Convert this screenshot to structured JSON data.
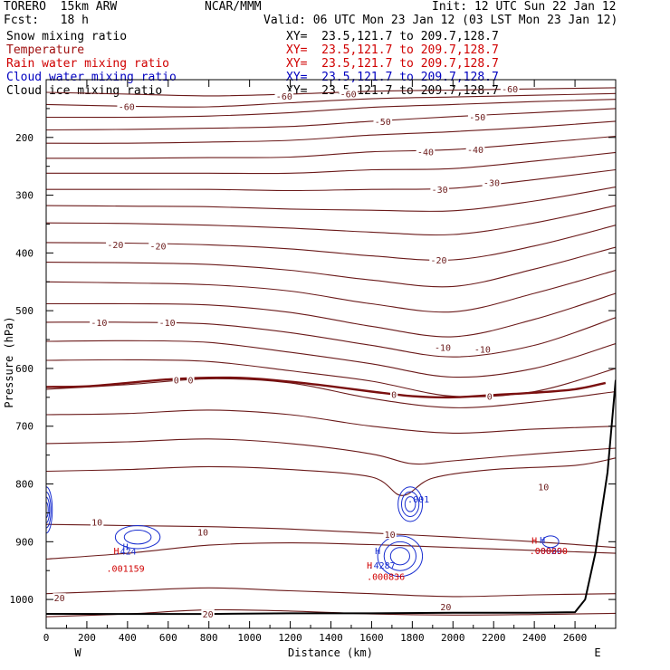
{
  "header": {
    "model": "TORERO  15km ARW",
    "center": "NCAR/MMM",
    "init": "Init: 12 UTC Sun 22 Jan 12",
    "fcst": "Fcst:   18 h",
    "valid": "Valid: 06 UTC Mon 23 Jan 12 (03 LST Mon 23 Jan 12)"
  },
  "fields": [
    {
      "name": "Snow mixing ratio",
      "xy": "XY=  23.5,121.7 to 209.7,128.7",
      "color": "#000000"
    },
    {
      "name": "Temperature",
      "xy": "XY=  23.5,121.7 to 209.7,128.7",
      "color": "#a01010"
    },
    {
      "name": "Rain water mixing ratio",
      "xy": "XY=  23.5,121.7 to 209.7,128.7",
      "color": "#d00000"
    },
    {
      "name": "Cloud water mixing ratio",
      "xy": "XY=  23.5,121.7 to 209.7,128.7",
      "color": "#0000c0"
    },
    {
      "name": "Cloud ice mixing ratio",
      "xy": "XY=  23.5,121.7 to 209.7,128.7",
      "color": "#000000"
    }
  ],
  "chart_data": {
    "type": "line",
    "xlabel": "Distance (km)",
    "ylabel": "Pressure (hPa)",
    "xlim": [
      0,
      2800
    ],
    "ylim": [
      1050,
      100
    ],
    "xticks": [
      0,
      200,
      400,
      600,
      800,
      1000,
      1200,
      1400,
      1600,
      1800,
      2000,
      2200,
      2400,
      2600
    ],
    "yticks": [
      200,
      300,
      400,
      500,
      600,
      700,
      800,
      900,
      1000
    ],
    "x_end_labels": {
      "left": "W",
      "right": "E"
    },
    "isotherm_color": "#6b1a1a",
    "terrain_color": "#000000",
    "isotherms": [
      {
        "value": -60,
        "x": [
          0,
          400,
          800,
          1200,
          1600,
          2000,
          2400,
          2800
        ],
        "y": [
          122,
          125,
          128,
          125,
          120,
          118,
          116,
          114
        ]
      },
      {
        "value": -60,
        "x": [
          0,
          400,
          800,
          1200,
          1600,
          2000,
          2400,
          2800
        ],
        "y": [
          143,
          146,
          147,
          140,
          133,
          130,
          127,
          124
        ]
      },
      {
        "value": -60,
        "x": [
          0,
          400,
          800,
          1200,
          1600,
          2000,
          2400,
          2800
        ],
        "y": [
          165,
          165,
          163,
          157,
          148,
          143,
          138,
          134
        ]
      },
      {
        "value": -50,
        "x": [
          0,
          400,
          800,
          1200,
          1600,
          2000,
          2400,
          2800
        ],
        "y": [
          187,
          186,
          184,
          181,
          172,
          164,
          157,
          150
        ]
      },
      {
        "value": -50,
        "x": [
          0,
          400,
          800,
          1200,
          1600,
          2000,
          2400,
          2800
        ],
        "y": [
          210,
          210,
          208,
          205,
          196,
          190,
          182,
          172
        ]
      },
      {
        "value": -40,
        "x": [
          0,
          400,
          800,
          1200,
          1600,
          2000,
          2400,
          2800
        ],
        "y": [
          236,
          236,
          235,
          234,
          225,
          221,
          210,
          198
        ]
      },
      {
        "value": -40,
        "x": [
          0,
          400,
          800,
          1200,
          1600,
          2000,
          2400,
          2800
        ],
        "y": [
          262,
          262,
          262,
          262,
          256,
          254,
          241,
          226
        ]
      },
      {
        "value": -30,
        "x": [
          0,
          400,
          800,
          1200,
          1600,
          2000,
          2400,
          2800
        ],
        "y": [
          290,
          290,
          290,
          292,
          290,
          288,
          273,
          256
        ]
      },
      {
        "value": -30,
        "x": [
          0,
          400,
          800,
          1200,
          1600,
          2000,
          2400,
          2800
        ],
        "y": [
          318,
          319,
          320,
          324,
          326,
          327,
          310,
          286
        ]
      },
      {
        "value": -20,
        "x": [
          0,
          400,
          800,
          1200,
          1600,
          2000,
          2400,
          2800
        ],
        "y": [
          348,
          349,
          352,
          357,
          364,
          368,
          348,
          318
        ]
      },
      {
        "value": -20,
        "x": [
          0,
          400,
          800,
          1200,
          1600,
          2000,
          2400,
          2800
        ],
        "y": [
          382,
          383,
          386,
          393,
          405,
          412,
          388,
          352
        ]
      },
      {
        "value": -20,
        "x": [
          0,
          400,
          800,
          1200,
          1600,
          2000,
          2400,
          2800
        ],
        "y": [
          416,
          417,
          420,
          430,
          447,
          458,
          428,
          390
        ]
      },
      {
        "value": -20,
        "x": [
          0,
          400,
          800,
          1200,
          1600,
          2000,
          2400,
          2800
        ],
        "y": [
          450,
          452,
          455,
          466,
          488,
          502,
          470,
          430
        ]
      },
      {
        "value": -10,
        "x": [
          0,
          400,
          800,
          1200,
          1600,
          2000,
          2400,
          2800
        ],
        "y": [
          488,
          488,
          490,
          503,
          527,
          545,
          515,
          470
        ]
      },
      {
        "value": -10,
        "x": [
          0,
          400,
          800,
          1200,
          1600,
          2000,
          2400,
          2800
        ],
        "y": [
          520,
          520,
          523,
          538,
          560,
          580,
          560,
          512
        ]
      },
      {
        "value": -10,
        "x": [
          0,
          400,
          800,
          1200,
          1600,
          2000,
          2400,
          2800
        ],
        "y": [
          553,
          552,
          555,
          572,
          592,
          615,
          600,
          557
        ]
      },
      {
        "value": -10,
        "x": [
          0,
          400,
          800,
          1200,
          1600,
          2000,
          2400,
          2800
        ],
        "y": [
          586,
          585,
          588,
          604,
          622,
          648,
          640,
          600
        ]
      },
      {
        "value": 0,
        "x": [
          0,
          400,
          800,
          1200,
          1600,
          2000,
          2400,
          2800
        ],
        "y": [
          636,
          628,
          618,
          625,
          652,
          668,
          658,
          640
        ]
      },
      {
        "value": 0,
        "x": [
          0,
          400,
          800,
          1200,
          1600,
          2000,
          2400,
          2800
        ],
        "y": [
          680,
          678,
          672,
          680,
          700,
          712,
          705,
          700
        ]
      },
      {
        "value": 0,
        "x": [
          0,
          400,
          800,
          1200,
          1600,
          1800,
          2000,
          2400,
          2800
        ],
        "y": [
          730,
          727,
          722,
          730,
          748,
          765,
          760,
          748,
          738
        ]
      },
      {
        "value": 10,
        "x": [
          0,
          400,
          800,
          1200,
          1600,
          1750,
          1900,
          2200,
          2600,
          2800
        ],
        "y": [
          778,
          775,
          770,
          775,
          788,
          820,
          790,
          775,
          768,
          755
        ]
      },
      {
        "value": 10,
        "x": [
          0,
          400,
          800,
          1200,
          1600,
          2000,
          2400,
          2800
        ],
        "y": [
          870,
          872,
          874,
          878,
          885,
          892,
          900,
          910
        ]
      },
      {
        "value": 10,
        "x": [
          0,
          400,
          800,
          1200,
          1600,
          2000,
          2400,
          2800
        ],
        "y": [
          930,
          920,
          906,
          902,
          905,
          910,
          915,
          920
        ]
      },
      {
        "value": 20,
        "x": [
          0,
          400,
          800,
          1200,
          1600,
          2000,
          2400,
          2800
        ],
        "y": [
          990,
          985,
          980,
          985,
          990,
          995,
          992,
          990
        ]
      },
      {
        "value": 20,
        "x": [
          0,
          400,
          800,
          1200,
          1600,
          2000,
          2400,
          2800
        ],
        "y": [
          1030,
          1025,
          1018,
          1020,
          1025,
          1027,
          1026,
          1024
        ]
      }
    ],
    "highlight_isotherm": {
      "value": 0,
      "x": [
        0,
        200,
        400,
        600,
        800,
        1000,
        1200,
        1400,
        1600,
        1800,
        2000,
        2200,
        2400,
        2600,
        2750
      ],
      "y": [
        632,
        631,
        625,
        619,
        616,
        617,
        623,
        631,
        640,
        648,
        650,
        646,
        642,
        636,
        625
      ]
    },
    "isotherm_labels": [
      {
        "text": "-60",
        "x": 1170,
        "y": 128
      },
      {
        "text": "-60",
        "x": 1485,
        "y": 124
      },
      {
        "text": "-60",
        "x": 2280,
        "y": 116
      },
      {
        "text": "-60",
        "x": 395,
        "y": 146
      },
      {
        "text": "-50",
        "x": 1655,
        "y": 172
      },
      {
        "text": "-50",
        "x": 2120,
        "y": 164
      },
      {
        "text": "-40",
        "x": 1865,
        "y": 225
      },
      {
        "text": "-40",
        "x": 2110,
        "y": 221
      },
      {
        "text": "-30",
        "x": 1935,
        "y": 290
      },
      {
        "text": "-30",
        "x": 2190,
        "y": 278
      },
      {
        "text": "-20",
        "x": 340,
        "y": 385
      },
      {
        "text": "-20",
        "x": 550,
        "y": 388
      },
      {
        "text": "-20",
        "x": 1930,
        "y": 412
      },
      {
        "text": "-10",
        "x": 260,
        "y": 520
      },
      {
        "text": "-10",
        "x": 595,
        "y": 520
      },
      {
        "text": "-10",
        "x": 1950,
        "y": 563
      },
      {
        "text": "-10",
        "x": 2145,
        "y": 566
      },
      {
        "text": "0",
        "x": 640,
        "y": 620
      },
      {
        "text": "0",
        "x": 710,
        "y": 620
      },
      {
        "text": "0",
        "x": 1710,
        "y": 645
      },
      {
        "text": "0",
        "x": 2180,
        "y": 648
      },
      {
        "text": "10",
        "x": 250,
        "y": 866
      },
      {
        "text": "10",
        "x": 770,
        "y": 883
      },
      {
        "text": "10",
        "x": 1690,
        "y": 887
      },
      {
        "text": "10",
        "x": 2445,
        "y": 805
      },
      {
        "text": "20",
        "x": 65,
        "y": 997
      },
      {
        "text": "20",
        "x": 795,
        "y": 1025
      },
      {
        "text": "20",
        "x": 1965,
        "y": 1012
      }
    ],
    "terrain": {
      "x": [
        0,
        400,
        800,
        1200,
        1600,
        2000,
        2400,
        2600,
        2650,
        2700,
        2760,
        2800
      ],
      "y": [
        1025,
        1025,
        1025,
        1024,
        1024,
        1023,
        1023,
        1022,
        1000,
        920,
        780,
        620
      ]
    },
    "cloud_water": [
      {
        "label": "H",
        "x": 390,
        "y": 908
      },
      {
        "label": "H",
        "x": 1630,
        "y": 915
      },
      {
        "label": "H",
        "x": 2440,
        "y": 896
      },
      {
        "label": ".001",
        "x": 1830,
        "y": 826
      }
    ],
    "rain_water_labels": [
      {
        "text": "H",
        "x": 345,
        "y": 915
      },
      {
        "text": ".001159",
        "x": 390,
        "y": 946
      },
      {
        "text": "H",
        "x": 1590,
        "y": 940
      },
      {
        "text": ".000836",
        "x": 1670,
        "y": 960
      },
      {
        "text": "H",
        "x": 2400,
        "y": 897
      },
      {
        "text": ".000690",
        "x": 2470,
        "y": 915
      }
    ],
    "cloud_water_labels": [
      {
        "text": ".424",
        "x": 390,
        "y": 916
      },
      {
        "text": ".4287",
        "x": 1650,
        "y": 940
      },
      {
        "text": ".0020",
        "x": 2470,
        "y": 915
      }
    ]
  }
}
